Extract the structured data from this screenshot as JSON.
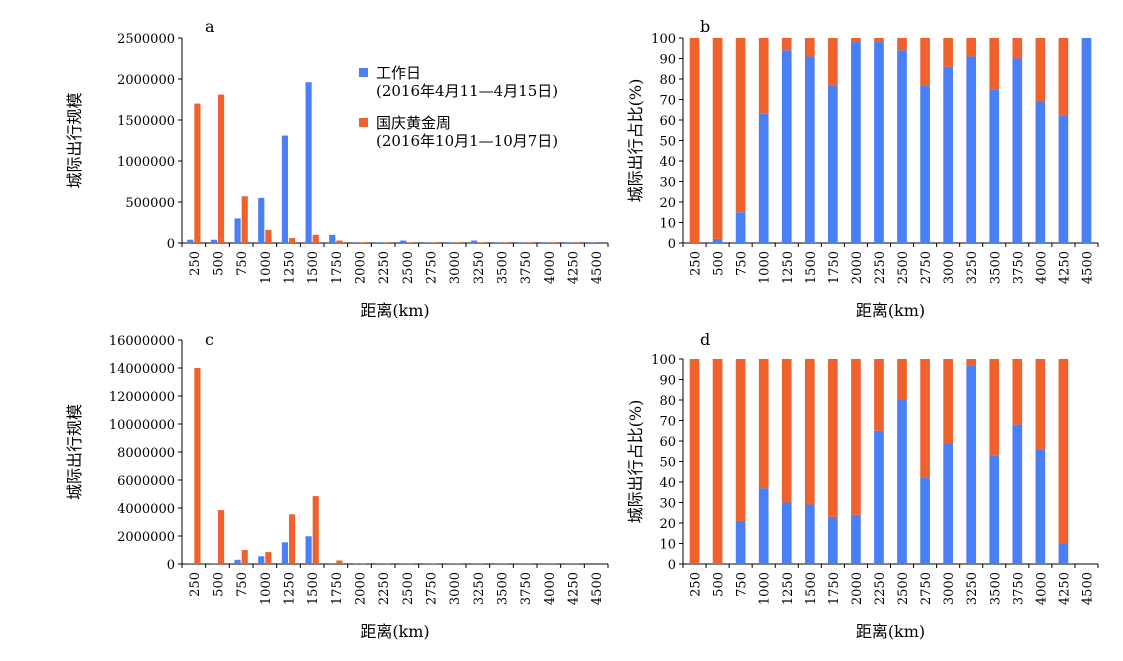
{
  "figure": {
    "legend": {
      "items": [
        {
          "label": "工作日",
          "sub": "(2016年4月11—4月15日)",
          "color": "#4a7ff5"
        },
        {
          "label": "国庆黄金周",
          "sub": "(2016年10月1—10月7日)",
          "color": "#f0622d"
        }
      ]
    }
  },
  "chart_data": [
    {
      "id": "a",
      "panel_label": "a",
      "type": "bar",
      "xlabel": "距离(km)",
      "ylabel": "城际出行规模",
      "ylim": [
        0,
        2500000
      ],
      "yticks": [
        0,
        500000,
        1000000,
        1500000,
        2000000,
        2500000
      ],
      "categories": [
        "250",
        "500",
        "750",
        "1000",
        "1250",
        "1500",
        "1750",
        "2000",
        "2250",
        "2500",
        "2750",
        "3000",
        "3250",
        "3500",
        "3750",
        "4000",
        "4250",
        "4500"
      ],
      "series": [
        {
          "name": "工作日",
          "values": [
            40000,
            40000,
            300000,
            550000,
            1310000,
            1960000,
            100000,
            5000,
            5000,
            30000,
            5000,
            5000,
            30000,
            5000,
            5000,
            5000,
            5000,
            5000
          ]
        },
        {
          "name": "国庆黄金周",
          "values": [
            1700000,
            1810000,
            570000,
            160000,
            60000,
            100000,
            30000,
            5000,
            5000,
            5000,
            5000,
            5000,
            5000,
            5000,
            5000,
            5000,
            5000,
            0
          ]
        }
      ]
    },
    {
      "id": "b",
      "panel_label": "b",
      "type": "stacked_bar",
      "xlabel": "距离(km)",
      "ylabel": "城际出行占比(%)",
      "ylim": [
        0,
        100
      ],
      "yticks": [
        0,
        10,
        20,
        30,
        40,
        50,
        60,
        70,
        80,
        90,
        100
      ],
      "categories": [
        "250",
        "500",
        "750",
        "1000",
        "1250",
        "1500",
        "1750",
        "2000",
        "2250",
        "2500",
        "2750",
        "3000",
        "3250",
        "3500",
        "3750",
        "4000",
        "4250",
        "4500"
      ],
      "series": [
        {
          "name": "工作日",
          "values": [
            0,
            2,
            15,
            63,
            94,
            91,
            77,
            98,
            98,
            94,
            77,
            86,
            91,
            75,
            90,
            69,
            62,
            100
          ]
        },
        {
          "name": "国庆黄金周",
          "values": [
            100,
            98,
            85,
            37,
            6,
            9,
            23,
            2,
            2,
            6,
            23,
            14,
            9,
            25,
            10,
            31,
            38,
            0
          ]
        }
      ]
    },
    {
      "id": "c",
      "panel_label": "c",
      "type": "bar",
      "xlabel": "距离(km)",
      "ylabel": "城际出行规模",
      "ylim": [
        0,
        16000000
      ],
      "yticks": [
        0,
        2000000,
        4000000,
        6000000,
        8000000,
        10000000,
        12000000,
        14000000,
        16000000
      ],
      "categories": [
        "250",
        "500",
        "750",
        "1000",
        "1250",
        "1500",
        "1750",
        "2000",
        "2250",
        "2500",
        "2750",
        "3000",
        "3250",
        "3500",
        "3750",
        "4000",
        "4250",
        "4500"
      ],
      "series": [
        {
          "name": "工作日",
          "values": [
            50000,
            50000,
            300000,
            550000,
            1550000,
            1980000,
            50000,
            20000,
            20000,
            20000,
            20000,
            20000,
            20000,
            20000,
            20000,
            20000,
            20000,
            0
          ]
        },
        {
          "name": "国庆黄金周",
          "values": [
            14000000,
            3850000,
            1000000,
            850000,
            3550000,
            4850000,
            250000,
            50000,
            50000,
            50000,
            50000,
            50000,
            50000,
            50000,
            50000,
            50000,
            50000,
            0
          ]
        }
      ]
    },
    {
      "id": "d",
      "panel_label": "d",
      "type": "stacked_bar",
      "xlabel": "距离(km)",
      "ylabel": "城际出行占比(%)",
      "ylim": [
        0,
        100
      ],
      "yticks": [
        0,
        10,
        20,
        30,
        40,
        50,
        60,
        70,
        80,
        90,
        100
      ],
      "categories": [
        "250",
        "500",
        "750",
        "1000",
        "1250",
        "1500",
        "1750",
        "2000",
        "2250",
        "2500",
        "2750",
        "3000",
        "3250",
        "3500",
        "3750",
        "4000",
        "4250",
        "4500"
      ],
      "series": [
        {
          "name": "工作日",
          "values": [
            0,
            0,
            21,
            37,
            30,
            29,
            23,
            24,
            65,
            80,
            42,
            59,
            97,
            53,
            68,
            56,
            10,
            0
          ]
        },
        {
          "name": "国庆黄金周",
          "values": [
            100,
            100,
            79,
            63,
            70,
            71,
            77,
            76,
            35,
            20,
            58,
            41,
            3,
            47,
            32,
            44,
            90,
            0
          ]
        }
      ]
    }
  ]
}
